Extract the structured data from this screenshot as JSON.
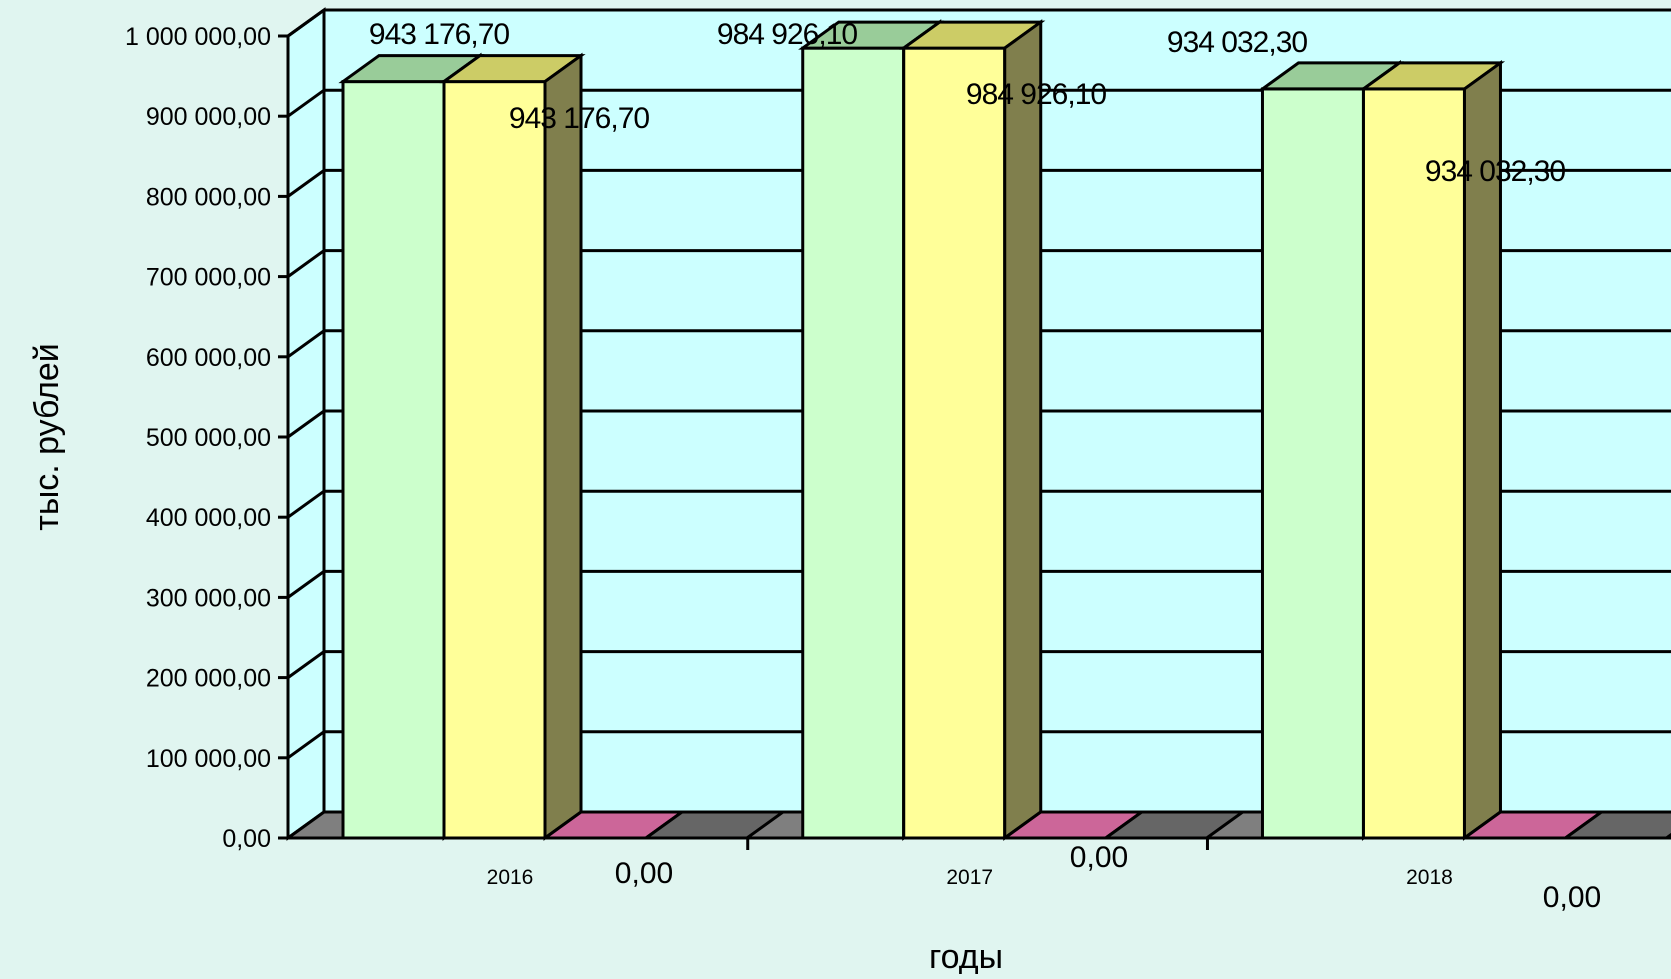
{
  "chart_data": {
    "type": "bar",
    "title": "",
    "xlabel": "годы",
    "ylabel": "тыс. рублей",
    "ylim": [
      0,
      1000000
    ],
    "yticks": [
      0,
      100000,
      200000,
      300000,
      400000,
      500000,
      600000,
      700000,
      800000,
      900000,
      1000000
    ],
    "ytick_labels": [
      "0,00",
      "100 000,00",
      "200 000,00",
      "300 000,00",
      "400 000,00",
      "500 000,00",
      "600 000,00",
      "700 000,00",
      "800 000,00",
      "900 000,00",
      "1 000 000,00"
    ],
    "categories": [
      "2016",
      "2017",
      "2018"
    ],
    "series": [
      {
        "values": [
          943176.7,
          984926.1,
          934032.3
        ],
        "labels": [
          "943 176,70",
          "984 926,10",
          "934 032,30"
        ]
      },
      {
        "values": [
          943176.7,
          984926.1,
          934032.3
        ],
        "labels": [
          "943 176,70",
          "984 926,10",
          "934 032,30"
        ]
      },
      {
        "values": [
          0,
          0,
          0
        ],
        "labels": [
          "0,00",
          "0,00",
          "0,00"
        ]
      },
      {
        "values": [
          0,
          0,
          0
        ],
        "labels": []
      }
    ],
    "grid": true,
    "legend": "none",
    "projection": "3d-column"
  },
  "colors": {
    "background": "#e0f5f0",
    "plot_area": "#ccffff",
    "floor": "#7f7f7f",
    "series_fronts": [
      "#ccffcc",
      "#ffff99",
      "#cc6699",
      "#808080"
    ],
    "series_tops": [
      "#99cc99",
      "#cccc66",
      "#993366",
      "#666666"
    ],
    "series_sides": [
      "#99b399",
      "#807f4d",
      "#993366",
      "#595959"
    ]
  }
}
